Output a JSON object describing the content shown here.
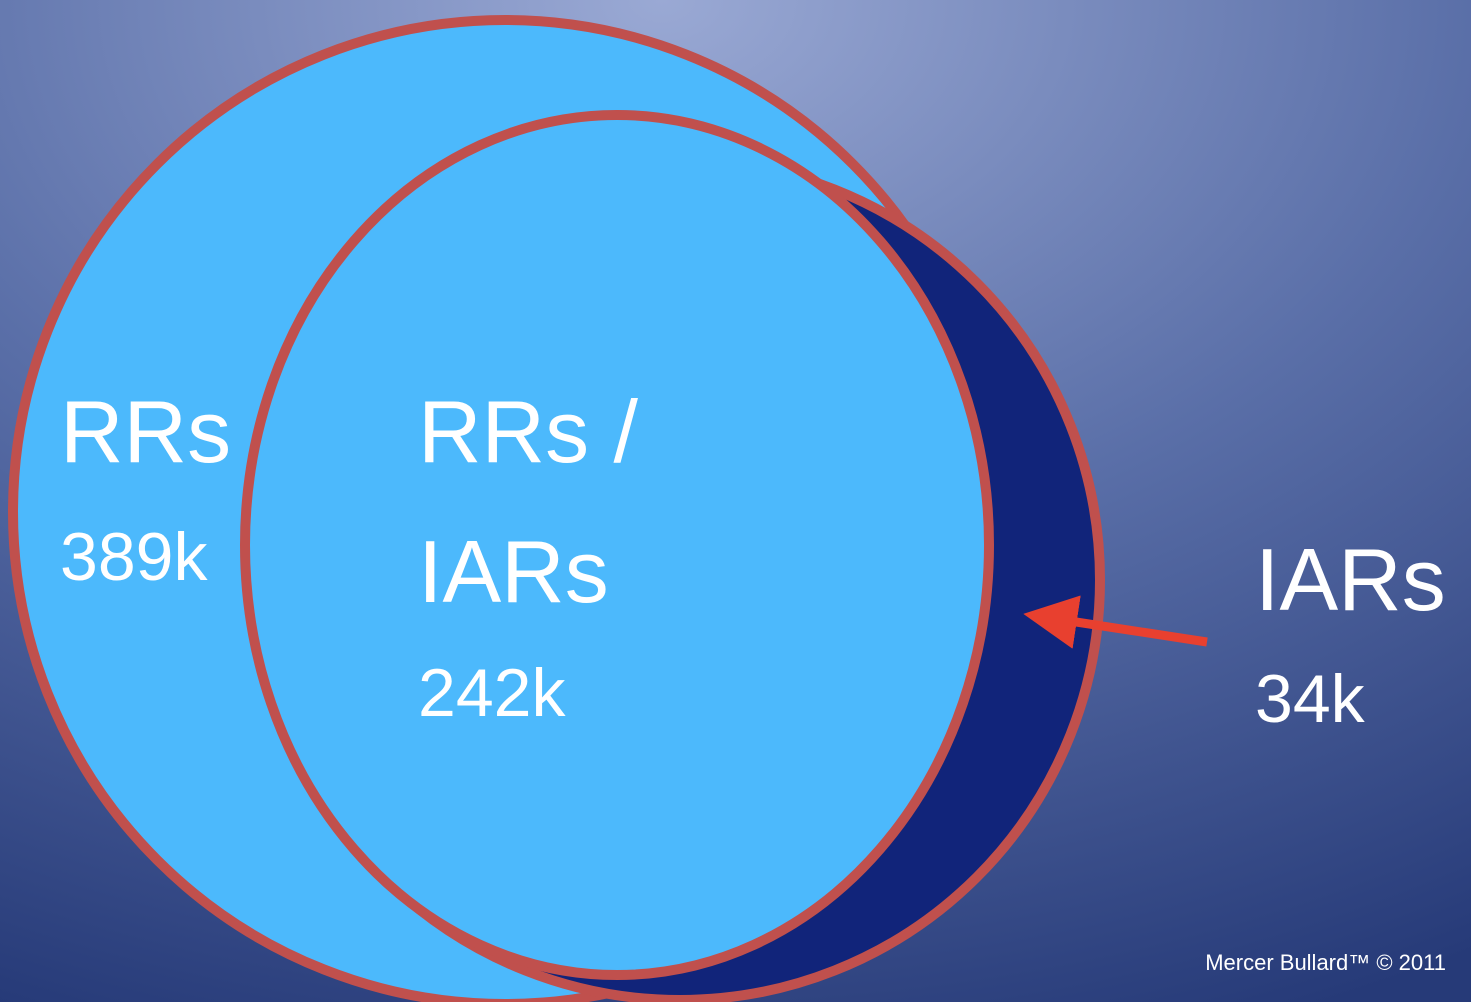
{
  "regions": [
    {
      "lines": [
        "RRs"
      ],
      "count": "389k"
    },
    {
      "lines": [
        "RRs /",
        "IARs"
      ],
      "count": "242k"
    },
    {
      "lines": [
        "IARs"
      ],
      "count": "34k"
    }
  ],
  "footer": "Mercer Bullard™ © 2011"
}
